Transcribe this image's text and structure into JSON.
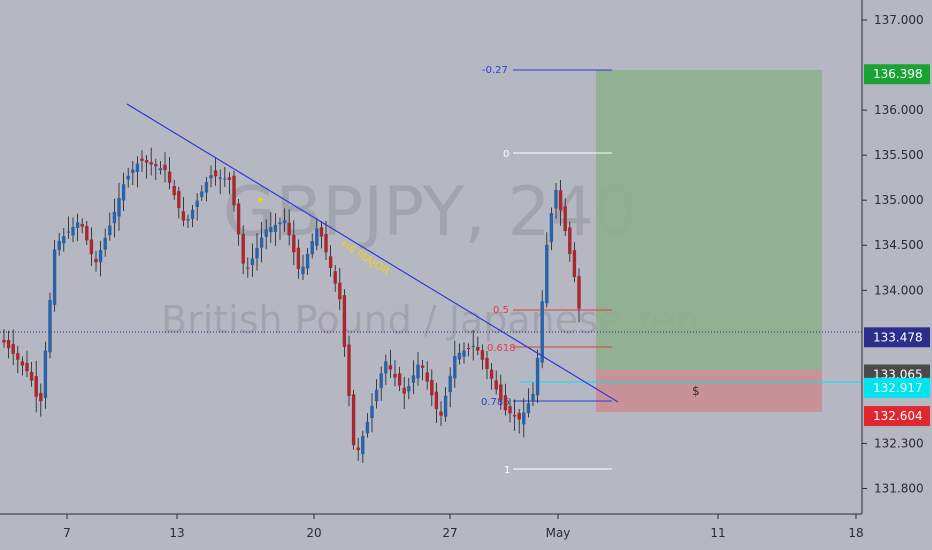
{
  "watermark": {
    "symbol": "GBPJPY, 240",
    "description": "British Pound / Japanese Yen"
  },
  "annotations": {
    "trendline_label": "H4 MAJOR",
    "dollar_label": "$"
  },
  "colors": {
    "background": "#b5b8c2",
    "bull_candle": "#2a62a8",
    "bear_candle": "#a8282d",
    "trendline": "#2f3bd6",
    "trendline_label": "#f0d020",
    "profit_zone": "#8fb08f",
    "loss_zone": "#c89097",
    "fib_white": "#ffffff",
    "fib_red": "#e03c3c",
    "fib_blue": "#2f3bd6"
  },
  "chart_data": {
    "type": "candlestick",
    "symbol": "GBPJPY",
    "timeframe": "240",
    "y_axis": {
      "ticks": [
        "137.000",
        "136.000",
        "135.500",
        "135.000",
        "134.500",
        "134.000",
        "132.300",
        "131.800"
      ],
      "range": [
        131.45,
        137.2
      ]
    },
    "x_axis": {
      "ticks": [
        "7",
        "13",
        "20",
        "27",
        "May",
        "11",
        "18"
      ]
    },
    "price_badges": [
      {
        "label": "136.398",
        "value": 136.398,
        "color": "#1aa334"
      },
      {
        "label": "133.478",
        "value": 133.478,
        "color": "#2c2e8c"
      },
      {
        "label": "133.065",
        "value": 133.065,
        "color": "#4a4a4a"
      },
      {
        "label": "132.917",
        "value": 132.917,
        "color": "#00e4f0",
        "text_color": "#0b2a33"
      },
      {
        "label": "132.604",
        "value": 132.604,
        "color": "#e0262e"
      }
    ],
    "fibonacci": [
      {
        "label": "-0.27",
        "price": 136.398,
        "color": "#2f3bd6"
      },
      {
        "label": "0",
        "price": 135.47,
        "color": "#ffffff"
      },
      {
        "label": "0.5",
        "price": 133.68,
        "color": "#e03c3c"
      },
      {
        "label": "0.618",
        "price": 133.27,
        "color": "#e03c3c"
      },
      {
        "label": "0.786",
        "price": 132.69,
        "color": "#2f3bd6"
      },
      {
        "label": "1",
        "price": 131.95,
        "color": "#ffffff"
      }
    ],
    "position": {
      "entry": 133.065,
      "take_profit": 136.398,
      "stop_loss": 132.604
    },
    "current_price": 133.478
  }
}
